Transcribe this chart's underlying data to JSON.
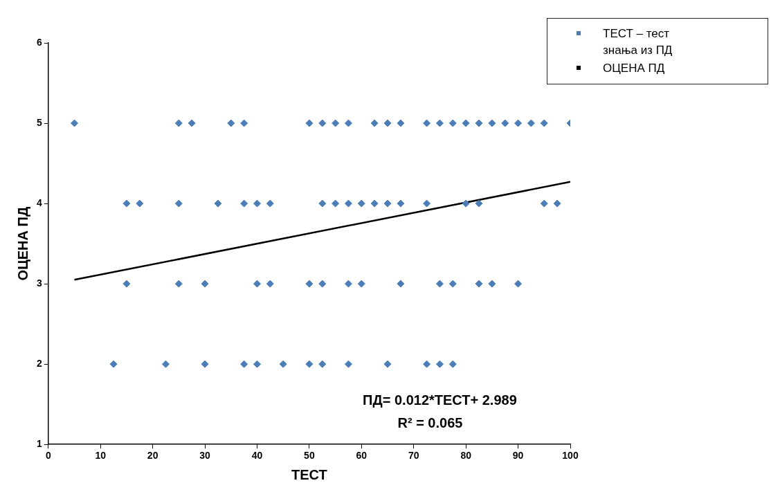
{
  "chart_data": {
    "type": "scatter",
    "xlabel": "ТЕСТ",
    "ylabel": "ОЦЕНА ПД",
    "xlim": [
      0,
      100
    ],
    "xticks": [
      0,
      10,
      20,
      30,
      40,
      50,
      60,
      70,
      80,
      90,
      100
    ],
    "ylim": [
      1,
      6
    ],
    "yticks": [
      1,
      2,
      3,
      4,
      5,
      6
    ],
    "grid": false,
    "legend": "top right",
    "marker": "diamond",
    "series": [
      {
        "name": "ТЕСТ –  тест знања из ПД",
        "type": "scatter",
        "color": "#4a7ebb",
        "x": [
          5,
          25,
          27.5,
          35,
          37.5,
          50,
          52.5,
          55,
          57.5,
          62.5,
          65,
          67.5,
          72.5,
          75,
          77.5,
          80,
          82.5,
          85,
          87.5,
          90,
          92.5,
          95,
          100,
          15,
          17.5,
          25,
          32.5,
          37.5,
          40,
          42.5,
          52.5,
          55,
          57.5,
          60,
          62.5,
          65,
          67.5,
          72.5,
          80,
          82.5,
          95,
          97.5,
          15,
          25,
          30,
          40,
          42.5,
          50,
          52.5,
          57.5,
          60,
          67.5,
          75,
          77.5,
          82.5,
          85,
          90,
          12.5,
          22.5,
          30,
          37.5,
          40,
          45,
          50,
          52.5,
          57.5,
          65,
          72.5,
          75,
          77.5
        ],
        "values": [
          5,
          5,
          5,
          5,
          5,
          5,
          5,
          5,
          5,
          5,
          5,
          5,
          5,
          5,
          5,
          5,
          5,
          5,
          5,
          5,
          5,
          5,
          5,
          4,
          4,
          4,
          4,
          4,
          4,
          4,
          4,
          4,
          4,
          4,
          4,
          4,
          4,
          4,
          4,
          4,
          4,
          4,
          3,
          3,
          3,
          3,
          3,
          3,
          3,
          3,
          3,
          3,
          3,
          3,
          3,
          3,
          3,
          2,
          2,
          2,
          2,
          2,
          2,
          2,
          2,
          2,
          2,
          2,
          2,
          2
        ]
      },
      {
        "name": "ОЦЕНА ПД",
        "type": "line",
        "color": "#000000",
        "marker": "none",
        "x": [
          5,
          100
        ],
        "values": [
          3.05,
          4.27
        ]
      }
    ],
    "annotations": [
      "ПД= 0.012*ТЕСТ+ 2.989",
      "R² = 0.065"
    ]
  }
}
